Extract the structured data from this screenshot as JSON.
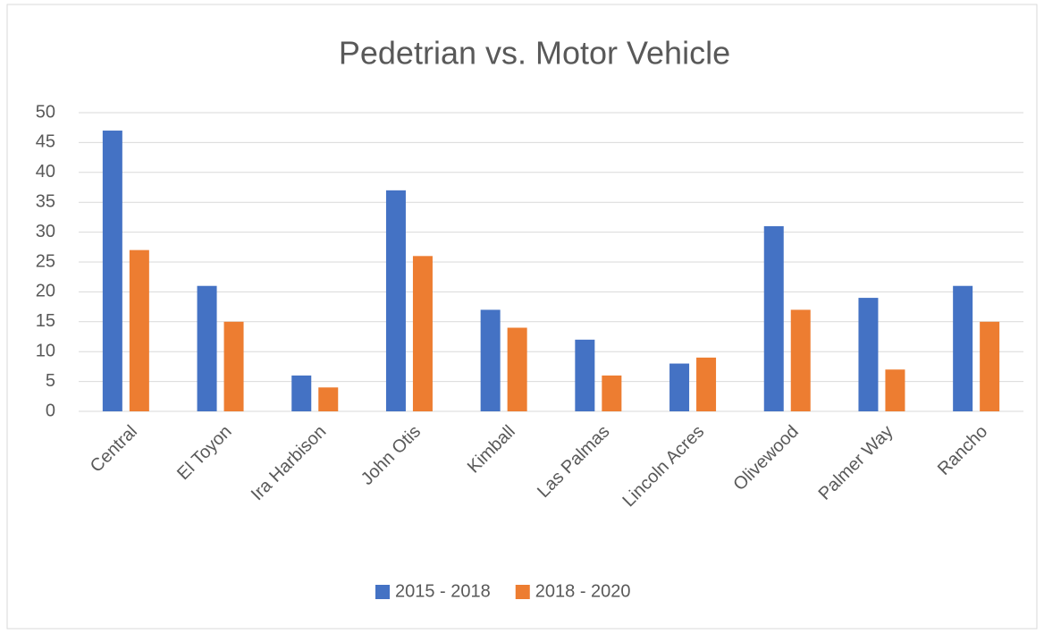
{
  "chart_data": {
    "type": "bar",
    "title": "Pedetrian vs. Motor Vehicle",
    "categories": [
      "Central",
      "El Toyon",
      "Ira Harbison",
      "John Otis",
      "Kimball",
      "Las Palmas",
      "Lincoln Acres",
      "Olivewood",
      "Palmer Way",
      "Rancho"
    ],
    "series": [
      {
        "name": "2015 - 2018",
        "color": "#4472c4",
        "values": [
          47,
          21,
          6,
          37,
          17,
          12,
          8,
          31,
          19,
          21
        ]
      },
      {
        "name": "2018 - 2020",
        "color": "#ed7d31",
        "values": [
          27,
          15,
          4,
          26,
          14,
          6,
          9,
          17,
          7,
          15
        ]
      }
    ],
    "ylim": [
      0,
      50
    ],
    "yticks": [
      0,
      5,
      10,
      15,
      20,
      25,
      30,
      35,
      40,
      45,
      50
    ],
    "grid": true,
    "legend": "bottom"
  }
}
